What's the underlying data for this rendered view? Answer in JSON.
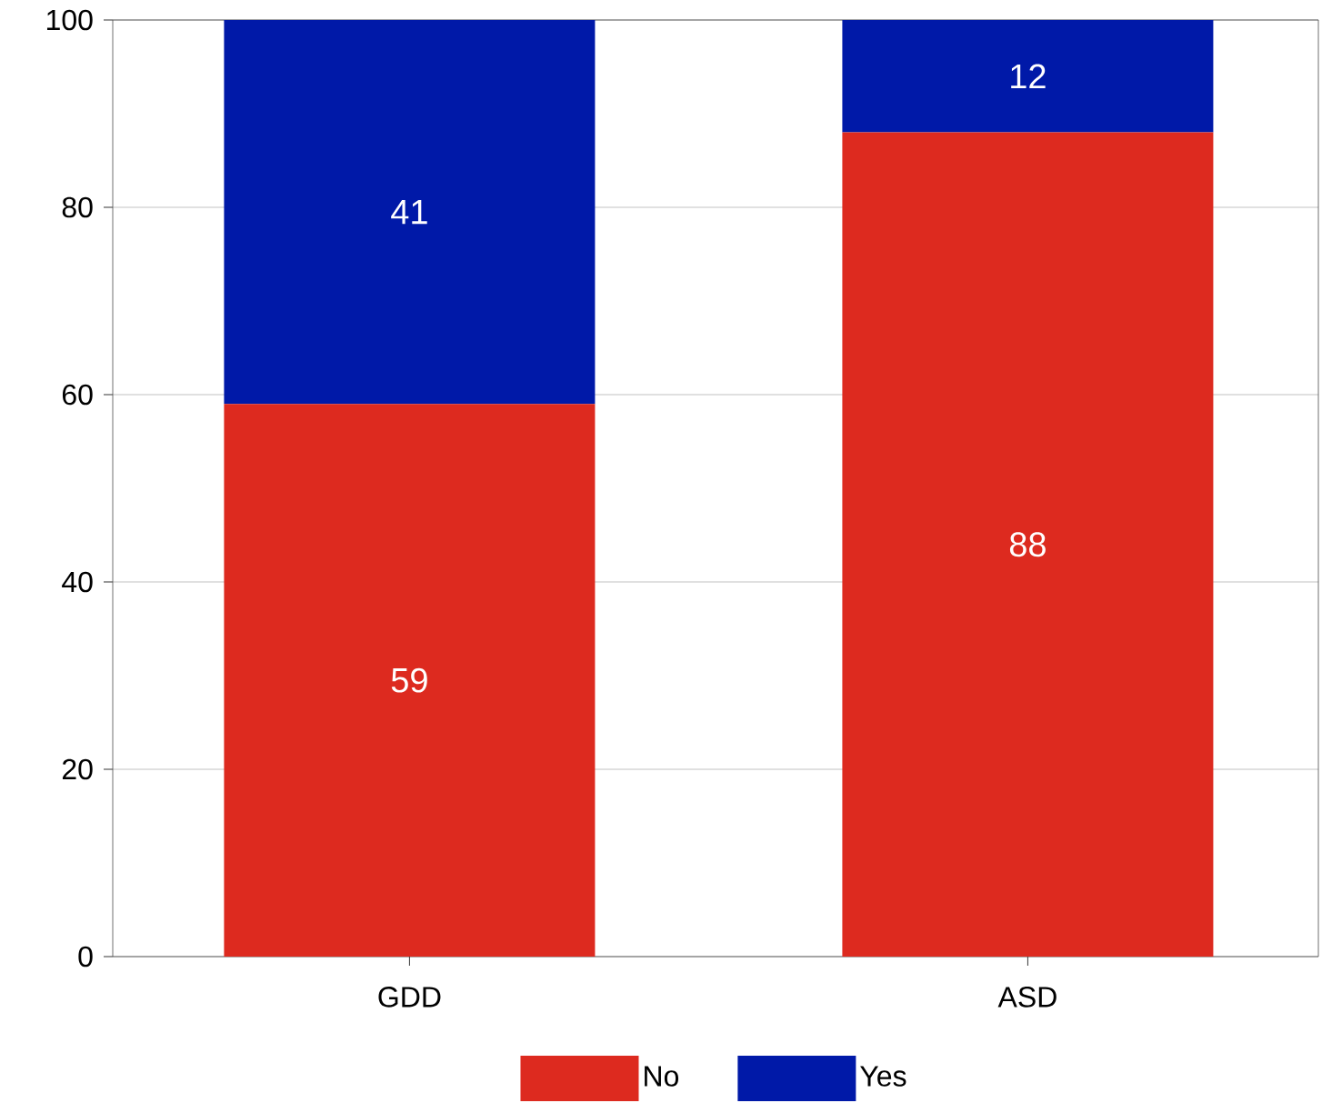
{
  "chart_data": {
    "type": "bar",
    "stacked": true,
    "categories": [
      "GDD",
      "ASD"
    ],
    "series": [
      {
        "name": "No",
        "color": "#dd2a1f",
        "values": [
          59,
          88
        ]
      },
      {
        "name": "Yes",
        "color": "#0019a8",
        "values": [
          41,
          12
        ]
      }
    ],
    "ylim": [
      0,
      100
    ],
    "yticks": [
      0,
      20,
      40,
      60,
      80,
      100
    ],
    "grid": "y",
    "legend": "bottom",
    "data_labels": true
  }
}
